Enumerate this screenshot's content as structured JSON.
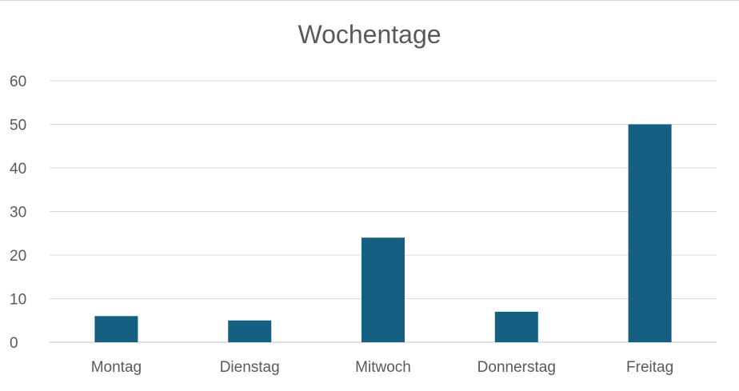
{
  "chart_data": {
    "type": "bar",
    "title": "Wochentage",
    "categories": [
      "Montag",
      "Dienstag",
      "Mitwoch",
      "Donnerstag",
      "Freitag"
    ],
    "values": [
      6,
      5,
      24,
      7,
      50
    ],
    "xlabel": "",
    "ylabel": "",
    "ylim": [
      0,
      60
    ],
    "yticks": [
      "0",
      "10",
      "20",
      "30",
      "40",
      "50",
      "60"
    ],
    "grid": true,
    "legend": "none",
    "bar_color": "#156082",
    "grid_color": "#d9d9d9",
    "text_color": "#595959"
  }
}
